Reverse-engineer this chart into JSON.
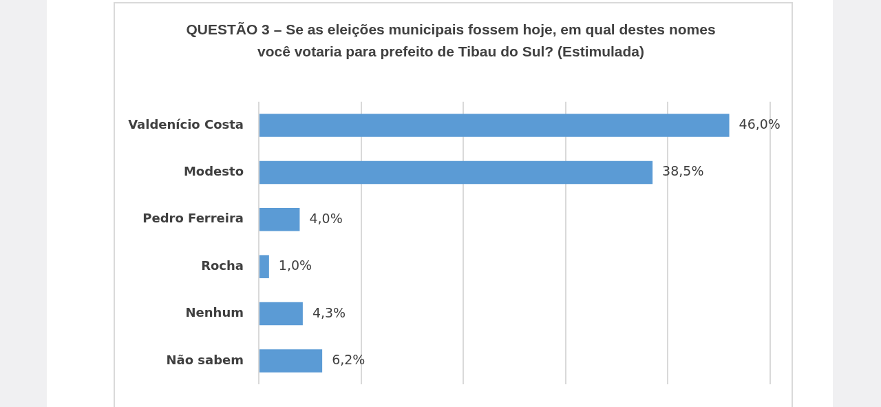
{
  "chart_data": {
    "type": "bar",
    "orientation": "horizontal",
    "title": "QUESTÃO 3 – Se as eleições municipais fossem hoje, em qual destes nomes você votaria para prefeito de Tibau do Sul? (Estimulada)",
    "categories": [
      "Valdenício Costa",
      "Modesto",
      "Pedro Ferreira",
      "Rocha",
      "Nenhum",
      "Não sabem"
    ],
    "values": [
      46.0,
      38.5,
      4.0,
      1.0,
      4.3,
      6.2
    ],
    "value_labels": [
      "46,0%",
      "38,5%",
      "4,0%",
      "1,0%",
      "4,3%",
      "6,2%"
    ],
    "color": "#5b9bd5",
    "xlim": [
      0,
      50
    ],
    "xticks": [
      {
        "value": 0,
        "label": null
      },
      {
        "value": 10,
        "label": null
      },
      {
        "value": 20,
        "label": null
      },
      {
        "value": 30,
        "label": null
      },
      {
        "value": 40,
        "label": null
      },
      {
        "value": 50,
        "label": null
      }
    ],
    "grid": "x",
    "tick_labels": "y"
  }
}
